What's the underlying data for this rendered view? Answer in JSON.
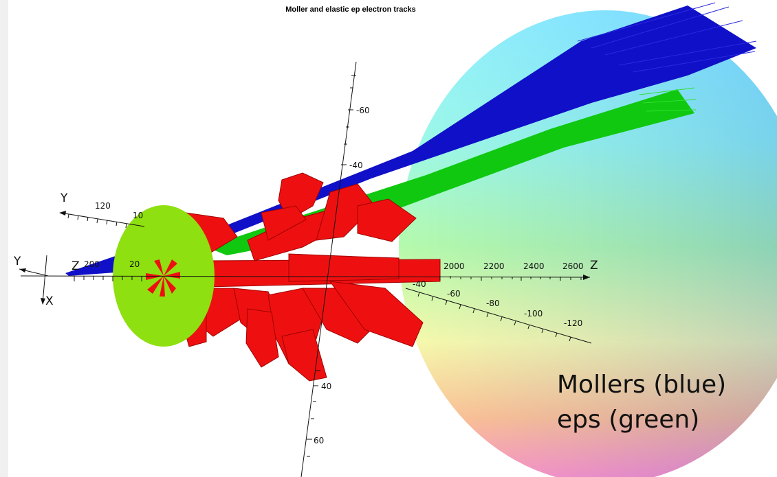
{
  "title": "Moller and elastic ep electron tracks",
  "annotation": {
    "line1": "Mollers (blue)",
    "line2": "eps (green)"
  },
  "axes": {
    "z_label": "Z",
    "y_label": "Y",
    "x_label": "X",
    "y2_label": "Y",
    "z_origin_label": "Z",
    "z_ticks": [
      "2000",
      "2200",
      "2400",
      "2600"
    ],
    "vertical_ticks": [
      "-60",
      "-40",
      "40",
      "60"
    ],
    "lower_diag_ticks": [
      "-40",
      "-60",
      "-80",
      "-100",
      "-120"
    ],
    "y_diag_ticks": [
      "120",
      "10"
    ],
    "small_ticks": [
      "200",
      "20"
    ]
  },
  "colors": {
    "moller_tracks": "#1010c8",
    "ep_tracks": "#10c810",
    "magnet": "#ee1010",
    "collimator": "#8ee010",
    "background": "#ffffff"
  }
}
